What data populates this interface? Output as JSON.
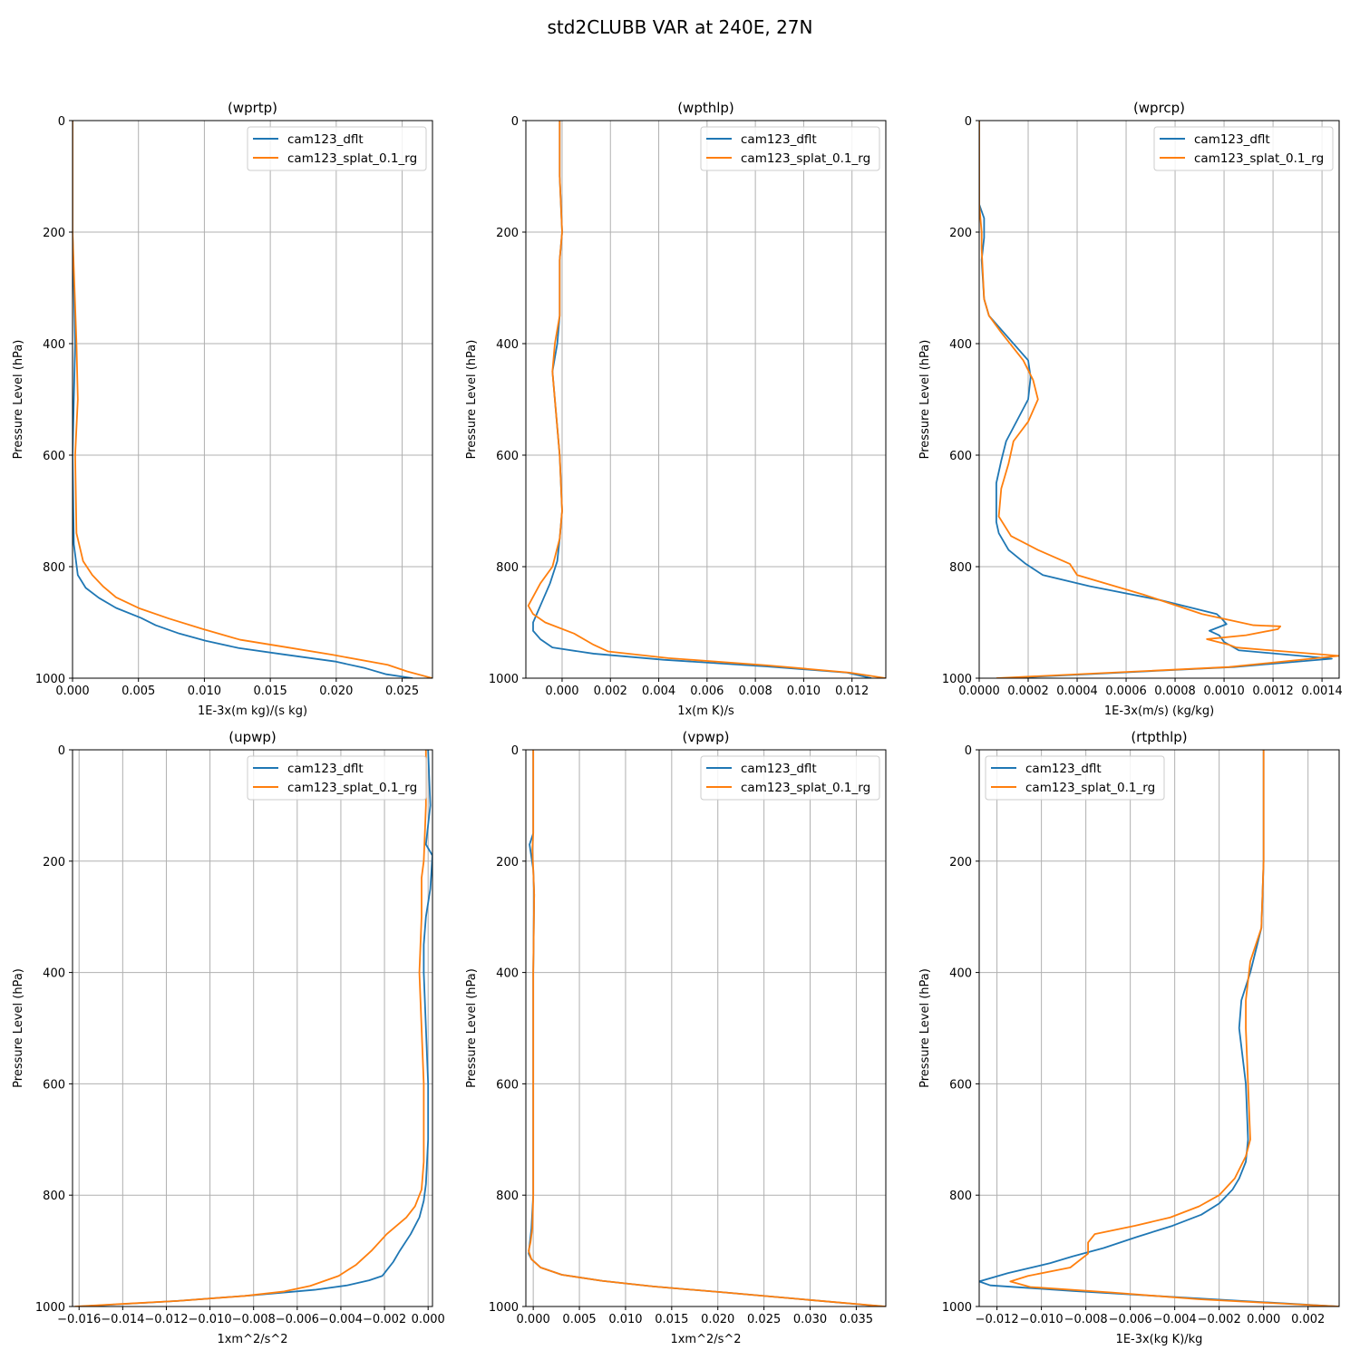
{
  "figure": {
    "title": "std2CLUBB VAR at 240E, 27N"
  },
  "colors": {
    "series_a": "#1f77b4",
    "series_b": "#ff7f0e",
    "grid": "#b0b0b0",
    "axis": "#000000"
  },
  "chart_data": [
    {
      "type": "line",
      "title": "(wprtp)",
      "xlabel": "1E-3x(m kg)/(s kg)",
      "ylabel": "Pressure Level (hPa)",
      "xlim": [
        0,
        0.0273
      ],
      "ylim": [
        1000,
        0
      ],
      "xticks": [
        0,
        0.005,
        0.01,
        0.015,
        0.02,
        0.025
      ],
      "xtick_labels": [
        "0.000",
        "0.005",
        "0.010",
        "0.015",
        "0.020",
        "0.025"
      ],
      "yticks": [
        0,
        200,
        400,
        600,
        800,
        1000
      ],
      "ytick_labels": [
        "0",
        "200",
        "400",
        "600",
        "800",
        "1000"
      ],
      "grid": true,
      "legend_loc": "upper right",
      "series": [
        {
          "name": "cam123_dflt",
          "x": [
            0,
            0,
            0.0002,
            0.0001,
            0,
            0.0001,
            0.0004,
            0.001,
            0.002,
            0.0033,
            0.0052,
            0.0063,
            0.0081,
            0.0101,
            0.0126,
            0.0159,
            0.0199,
            0.0222,
            0.0238,
            0.0258
          ],
          "y": [
            0,
            200,
            400,
            500,
            600,
            760,
            815,
            838,
            856,
            874,
            892,
            905,
            920,
            933,
            946,
            957,
            970,
            982,
            993,
            1000
          ]
        },
        {
          "name": "cam123_splat_0.1_rg",
          "x": [
            0,
            0,
            0.0003,
            0.0004,
            0.0002,
            0.0003,
            0.0008,
            0.0015,
            0.0023,
            0.0033,
            0.0051,
            0.0073,
            0.0099,
            0.0127,
            0.0161,
            0.0197,
            0.0239,
            0.0254,
            0.0273
          ],
          "y": [
            0,
            200,
            400,
            500,
            600,
            740,
            790,
            815,
            835,
            855,
            875,
            893,
            912,
            931,
            944,
            958,
            976,
            988,
            1000
          ]
        }
      ]
    },
    {
      "type": "line",
      "title": "(wpthlp)",
      "xlabel": "1x(m K)/s",
      "ylabel": "Pressure Level (hPa)",
      "xlim": [
        -0.0015,
        0.0134
      ],
      "ylim": [
        1000,
        0
      ],
      "xticks": [
        0,
        0.002,
        0.004,
        0.006,
        0.008,
        0.01,
        0.012
      ],
      "xtick_labels": [
        "0.000",
        "0.002",
        "0.004",
        "0.006",
        "0.008",
        "0.010",
        "0.012"
      ],
      "yticks": [
        0,
        200,
        400,
        600,
        800,
        1000
      ],
      "ytick_labels": [
        "0",
        "200",
        "400",
        "600",
        "800",
        "1000"
      ],
      "grid": true,
      "legend_loc": "upper right",
      "series": [
        {
          "name": "cam123_dflt",
          "x": [
            -0.0001,
            -0.0001,
            0,
            -0.0001,
            -0.0001,
            -0.0002,
            -0.0004,
            -0.0003,
            -0.0001,
            0,
            -0.0001,
            -0.0002,
            -0.0005,
            -0.0009,
            -0.0012,
            -0.0012,
            -0.0009,
            -0.0004,
            0.0013,
            0.0042,
            0.0085,
            0.0118,
            0.0128
          ],
          "y": [
            0,
            100,
            200,
            250,
            350,
            400,
            450,
            500,
            600,
            700,
            750,
            790,
            830,
            870,
            900,
            915,
            930,
            945,
            956,
            967,
            979,
            990,
            1000
          ]
        },
        {
          "name": "cam123_splat_0.1_rg",
          "x": [
            -0.0001,
            -0.0001,
            0,
            -0.0001,
            -0.0001,
            -0.0003,
            -0.0004,
            -0.0003,
            -0.0001,
            0,
            -0.0001,
            -0.0004,
            -0.0009,
            -0.0014,
            -0.0012,
            -0.0007,
            0.0005,
            0.0013,
            0.0019,
            0.0044,
            0.0085,
            0.0119,
            0.0134
          ],
          "y": [
            0,
            100,
            200,
            250,
            350,
            400,
            450,
            500,
            600,
            700,
            750,
            800,
            830,
            870,
            885,
            900,
            920,
            940,
            952,
            964,
            977,
            990,
            1000
          ]
        }
      ]
    },
    {
      "type": "line",
      "title": "(wprcp)",
      "xlabel": "1E-3x(m/s) (kg/kg)",
      "ylabel": "Pressure Level (hPa)",
      "xlim": [
        0,
        0.00147
      ],
      "ylim": [
        1000,
        0
      ],
      "xticks": [
        0,
        0.0002,
        0.0004,
        0.0006,
        0.0008,
        0.001,
        0.0012,
        0.0014
      ],
      "xtick_labels": [
        "0.0000",
        "0.0002",
        "0.0004",
        "0.0006",
        "0.0008",
        "0.0010",
        "0.0012",
        "0.0014"
      ],
      "yticks": [
        0,
        200,
        400,
        600,
        800,
        1000
      ],
      "ytick_labels": [
        "0",
        "200",
        "400",
        "600",
        "800",
        "1000"
      ],
      "grid": true,
      "legend_loc": "upper right",
      "series": [
        {
          "name": "cam123_dflt",
          "x": [
            0,
            0,
            2e-05,
            2e-05,
            1e-05,
            2e-05,
            4e-05,
            0.0001,
            0.0002,
            0.00021,
            0.0002,
            0.00011,
            9e-05,
            7e-05,
            7e-05,
            8e-05,
            0.00012,
            0.00019,
            0.00026,
            0.00045,
            0.00074,
            0.00097,
            0.00099,
            0.00101,
            0.00094,
            0.00098,
            0.001,
            0.00106,
            0.00144,
            0.00104,
            0.00011
          ],
          "y": [
            0,
            150,
            175,
            210,
            250,
            320,
            350,
            380,
            430,
            460,
            500,
            575,
            610,
            650,
            720,
            740,
            770,
            795,
            815,
            835,
            860,
            885,
            893,
            903,
            915,
            923,
            935,
            950,
            965,
            980,
            1000
          ]
        },
        {
          "name": "cam123_splat_0.1_rg",
          "x": [
            0,
            0,
            1e-05,
            1e-05,
            2e-05,
            4e-05,
            9e-05,
            0.00018,
            0.00022,
            0.00024,
            0.0002,
            0.00014,
            0.00012,
            9e-05,
            8e-05,
            0.00013,
            0.00024,
            0.00037,
            0.0004,
            0.00067,
            0.00091,
            0.00112,
            0.00123,
            0.00122,
            0.00109,
            0.00093,
            0.00102,
            0.00105,
            0.00147,
            0.00102,
            7e-05
          ],
          "y": [
            0,
            150,
            200,
            230,
            320,
            350,
            380,
            430,
            465,
            500,
            540,
            575,
            615,
            660,
            710,
            745,
            770,
            795,
            815,
            850,
            885,
            905,
            907,
            912,
            923,
            930,
            940,
            945,
            960,
            980,
            1000
          ]
        }
      ]
    },
    {
      "type": "line",
      "title": "(upwp)",
      "xlabel": "1xm^2/s^2",
      "ylabel": "Pressure Level (hPa)",
      "xlim": [
        -0.0163,
        0.0002
      ],
      "ylim": [
        1000,
        0
      ],
      "xticks": [
        -0.016,
        -0.014,
        -0.012,
        -0.01,
        -0.008,
        -0.006,
        -0.004,
        -0.002,
        0
      ],
      "xtick_labels": [
        "−0.016",
        "−0.014",
        "−0.012",
        "−0.010",
        "−0.008",
        "−0.006",
        "−0.004",
        "−0.002",
        "0.000"
      ],
      "yticks": [
        0,
        200,
        400,
        600,
        800,
        1000
      ],
      "ytick_labels": [
        "0",
        "200",
        "400",
        "600",
        "800",
        "1000"
      ],
      "grid": true,
      "legend_loc": "upper right",
      "series": [
        {
          "name": "cam123_dflt",
          "x": [
            0,
            0.0001,
            -0.0001,
            0.0002,
            0.0001,
            -0.0001,
            -0.0002,
            -0.0002,
            -0.0001,
            0,
            0,
            -0.0001,
            -0.0002,
            -0.0004,
            -0.0008,
            -0.0013,
            -0.0016,
            -0.0019,
            -0.002,
            -0.0021,
            -0.0027,
            -0.0037,
            -0.0052,
            -0.0081,
            -0.0115,
            -0.016
          ],
          "y": [
            0,
            100,
            170,
            190,
            250,
            300,
            350,
            400,
            500,
            600,
            700,
            780,
            810,
            840,
            870,
            900,
            920,
            935,
            940,
            945,
            953,
            962,
            970,
            980,
            990,
            1000
          ]
        },
        {
          "name": "cam123_splat_0.1_rg",
          "x": [
            -0.0001,
            -0.0001,
            -0.0002,
            -0.0003,
            -0.0003,
            -0.0004,
            -0.0003,
            -0.0002,
            -0.0002,
            -0.0003,
            -0.0006,
            -0.001,
            -0.0019,
            -0.0026,
            -0.0033,
            -0.0041,
            -0.0054,
            -0.0066,
            -0.0084,
            -0.0115,
            -0.0162
          ],
          "y": [
            0,
            100,
            200,
            230,
            300,
            400,
            500,
            600,
            740,
            790,
            820,
            840,
            870,
            900,
            925,
            945,
            963,
            973,
            981,
            990,
            1000
          ]
        }
      ]
    },
    {
      "type": "line",
      "title": "(vpwp)",
      "xlabel": "1xm^2/s^2",
      "ylabel": "Pressure Level (hPa)",
      "xlim": [
        -0.0008,
        0.0382
      ],
      "ylim": [
        1000,
        0
      ],
      "xticks": [
        0,
        0.005,
        0.01,
        0.015,
        0.02,
        0.025,
        0.03,
        0.035
      ],
      "xtick_labels": [
        "0.000",
        "0.005",
        "0.010",
        "0.015",
        "0.020",
        "0.025",
        "0.030",
        "0.035"
      ],
      "yticks": [
        0,
        200,
        400,
        600,
        800,
        1000
      ],
      "ytick_labels": [
        "0",
        "200",
        "400",
        "600",
        "800",
        "1000"
      ],
      "grid": true,
      "legend_loc": "upper right",
      "series": [
        {
          "name": "cam123_dflt",
          "x": [
            0,
            0,
            -0.0004,
            0,
            0.0001,
            0,
            0,
            -0.0002,
            -0.0004,
            -0.0005,
            -0.0002,
            0.0008,
            0.0031,
            0.0075,
            0.013,
            0.0209,
            0.0291,
            0.038
          ],
          "y": [
            0,
            150,
            170,
            215,
            260,
            400,
            800,
            860,
            890,
            905,
            915,
            930,
            943,
            954,
            964,
            975,
            987,
            1000
          ]
        },
        {
          "name": "cam123_splat_0.1_rg",
          "x": [
            0,
            0,
            -0.0001,
            0,
            0.0001,
            0,
            0,
            -0.0001,
            -0.0003,
            -0.0005,
            -0.0002,
            0.0008,
            0.0031,
            0.0075,
            0.013,
            0.0209,
            0.0291,
            0.0382
          ],
          "y": [
            0,
            150,
            180,
            215,
            260,
            400,
            800,
            860,
            885,
            900,
            915,
            930,
            943,
            954,
            964,
            975,
            987,
            1000
          ]
        }
      ]
    },
    {
      "type": "line",
      "title": "(rtpthlp)",
      "xlabel": "1E-3x(kg K)/kg",
      "ylabel": "Pressure Level (hPa)",
      "xlim": [
        -0.0128,
        0.0034
      ],
      "ylim": [
        1000,
        0
      ],
      "xticks": [
        -0.012,
        -0.01,
        -0.008,
        -0.006,
        -0.004,
        -0.002,
        0,
        0.002
      ],
      "xtick_labels": [
        "−0.012",
        "−0.010",
        "−0.008",
        "−0.006",
        "−0.004",
        "−0.002",
        "0.000",
        "0.002"
      ],
      "yticks": [
        0,
        200,
        400,
        600,
        800,
        1000
      ],
      "ytick_labels": [
        "0",
        "200",
        "400",
        "600",
        "800",
        "1000"
      ],
      "grid": true,
      "legend_loc": "upper left",
      "series": [
        {
          "name": "cam123_dflt",
          "x": [
            0,
            0,
            -0.0001,
            -0.0006,
            -0.001,
            -0.0011,
            -0.0008,
            -0.0007,
            -0.0008,
            -0.0011,
            -0.0014,
            -0.002,
            -0.0028,
            -0.0041,
            -0.0057,
            -0.0072,
            -0.0086,
            -0.0096,
            -0.0115,
            -0.0128,
            -0.0123,
            -0.0086,
            -0.0036,
            0.0034
          ],
          "y": [
            0,
            200,
            320,
            400,
            450,
            500,
            600,
            700,
            740,
            770,
            790,
            815,
            835,
            855,
            875,
            895,
            910,
            922,
            940,
            955,
            962,
            972,
            984,
            1000
          ]
        },
        {
          "name": "cam123_splat_0.1_rg",
          "x": [
            0,
            0,
            -0.0001,
            -0.0006,
            -0.0008,
            -0.0008,
            -0.0007,
            -0.0006,
            -0.0008,
            -0.0013,
            -0.002,
            -0.0029,
            -0.0042,
            -0.0058,
            -0.0076,
            -0.0079,
            -0.0079,
            -0.0087,
            -0.0106,
            -0.0114,
            -0.0105,
            -0.0068,
            -0.0029,
            0.0034
          ],
          "y": [
            0,
            200,
            320,
            380,
            450,
            500,
            600,
            700,
            730,
            770,
            800,
            820,
            840,
            855,
            870,
            885,
            905,
            930,
            945,
            955,
            965,
            975,
            987,
            1000
          ]
        }
      ]
    }
  ]
}
